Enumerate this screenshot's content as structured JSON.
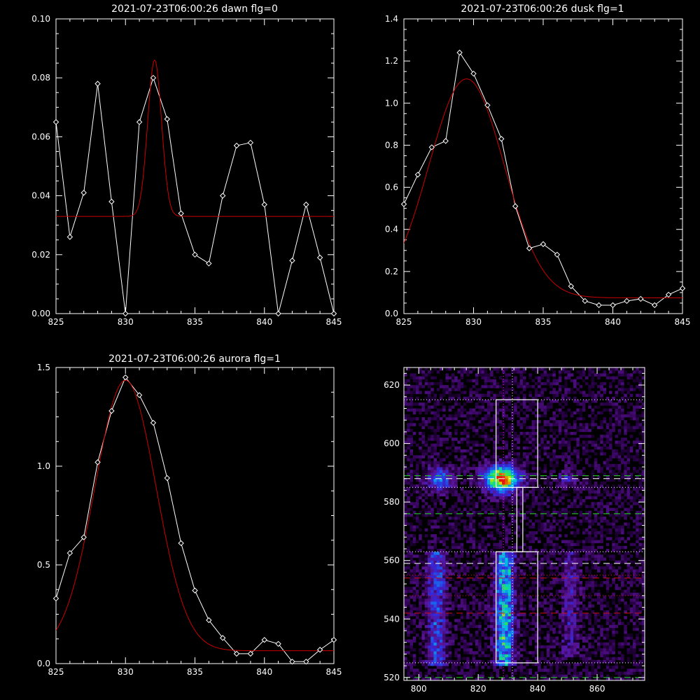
{
  "colors": {
    "background": "#000000",
    "data_line": "#ffffff",
    "fit_line": "#cc0000",
    "axes": "#ffffff",
    "green_dash": "#22dd22",
    "red_dash": "#cc1111",
    "box": "#ffffff"
  },
  "chart_data": [
    {
      "type": "line",
      "title": "2021-07-23T06:00:26 dawn flg=0",
      "xlim": [
        825,
        845
      ],
      "ylim": [
        0,
        0.1
      ],
      "xticks": [
        825,
        830,
        835,
        840,
        845
      ],
      "xtick_labels": [
        "825",
        "830",
        "835",
        "840",
        "845"
      ],
      "yticks": [
        0,
        0.02,
        0.04,
        0.06,
        0.08,
        0.1
      ],
      "ytick_labels": [
        "0.00",
        "0.02",
        "0.04",
        "0.06",
        "0.08",
        "0.10"
      ],
      "series": [
        {
          "role": "data",
          "marker": "diamond",
          "x": [
            825,
            826,
            827,
            828,
            829,
            830,
            831,
            832,
            833,
            834,
            835,
            836,
            837,
            838,
            839,
            840,
            841,
            842,
            843,
            844,
            845
          ],
          "y": [
            0.065,
            0.026,
            0.041,
            0.078,
            0.038,
            0.0,
            0.065,
            0.08,
            0.066,
            0.034,
            0.02,
            0.017,
            0.04,
            0.057,
            0.058,
            0.037,
            0.0,
            0.018,
            0.037,
            0.019,
            0.0
          ]
        },
        {
          "role": "fit",
          "model": "gaussian",
          "amplitude": 0.053,
          "center": 832.1,
          "sigma": 0.5,
          "baseline": 0.033
        }
      ]
    },
    {
      "type": "line",
      "title": "2021-07-23T06:00:26 dusk flg=1",
      "xlim": [
        825,
        845
      ],
      "ylim": [
        0,
        1.4
      ],
      "xticks": [
        825,
        830,
        835,
        840,
        845
      ],
      "xtick_labels": [
        "825",
        "830",
        "835",
        "840",
        "845"
      ],
      "yticks": [
        0,
        0.2,
        0.4,
        0.6,
        0.8,
        1.0,
        1.2,
        1.4
      ],
      "ytick_labels": [
        "0.0",
        "0.2",
        "0.4",
        "0.6",
        "0.8",
        "1.0",
        "1.2",
        "1.4"
      ],
      "series": [
        {
          "role": "data",
          "marker": "diamond",
          "x": [
            825,
            826,
            827,
            828,
            829,
            830,
            831,
            832,
            833,
            834,
            835,
            836,
            837,
            838,
            839,
            840,
            841,
            842,
            843,
            844,
            845
          ],
          "y": [
            0.52,
            0.66,
            0.79,
            0.82,
            1.24,
            1.14,
            0.99,
            0.83,
            0.51,
            0.31,
            0.33,
            0.28,
            0.13,
            0.06,
            0.04,
            0.04,
            0.06,
            0.07,
            0.04,
            0.09,
            0.12
          ]
        },
        {
          "role": "fit",
          "model": "gaussian",
          "amplitude": 1.04,
          "center": 829.5,
          "sigma": 2.7,
          "baseline": 0.075
        }
      ]
    },
    {
      "type": "line",
      "title": "2021-07-23T06:00:26 aurora flg=1",
      "xlim": [
        825,
        845
      ],
      "ylim": [
        0,
        1.5
      ],
      "xticks": [
        825,
        830,
        835,
        840,
        845
      ],
      "xtick_labels": [
        "825",
        "830",
        "835",
        "840",
        "845"
      ],
      "yticks": [
        0,
        0.5,
        1.0,
        1.5
      ],
      "ytick_labels": [
        "0.0",
        "0.5",
        "1.0",
        "1.5"
      ],
      "series": [
        {
          "role": "data",
          "marker": "diamond",
          "x": [
            825,
            826,
            827,
            828,
            829,
            830,
            831,
            832,
            833,
            834,
            835,
            836,
            837,
            838,
            839,
            840,
            841,
            842,
            843,
            844,
            845
          ],
          "y": [
            0.33,
            0.56,
            0.64,
            1.02,
            1.28,
            1.45,
            1.36,
            1.22,
            0.94,
            0.61,
            0.37,
            0.22,
            0.13,
            0.05,
            0.05,
            0.12,
            0.1,
            0.01,
            0.01,
            0.07,
            0.12
          ]
        },
        {
          "role": "fit",
          "model": "gaussian",
          "amplitude": 1.37,
          "center": 830.0,
          "sigma": 2.2,
          "baseline": 0.065
        }
      ]
    },
    {
      "type": "heatmap",
      "title": "",
      "xlim": [
        795,
        876
      ],
      "ylim": [
        519,
        626
      ],
      "xticks": [
        800,
        820,
        840,
        860
      ],
      "xtick_labels": [
        "800",
        "820",
        "840",
        "860"
      ],
      "yticks": [
        520,
        540,
        560,
        580,
        600,
        620
      ],
      "ytick_labels": [
        "520",
        "540",
        "560",
        "580",
        "600",
        "620"
      ],
      "colormap": "rainbow",
      "hotspots": [
        {
          "x": 828,
          "y": 588,
          "w": 4,
          "h": 3,
          "peak": 1.0
        },
        {
          "x": 807,
          "y": 588,
          "w": 3,
          "h": 2.5,
          "peak": 0.45
        },
        {
          "x": 850,
          "y": 588,
          "w": 2,
          "h": 2,
          "peak": 0.22
        }
      ],
      "bands": [
        {
          "x": 829,
          "w": 2.2,
          "y0": 524,
          "y1": 563,
          "peak": 0.55
        },
        {
          "x": 806,
          "w": 2.2,
          "y0": 524,
          "y1": 563,
          "peak": 0.32
        },
        {
          "x": 851,
          "w": 2.0,
          "y0": 527,
          "y1": 563,
          "peak": 0.16
        }
      ],
      "vertical_dotted_lines": [
        {
          "x": 828.5,
          "color": "#ff00ff"
        },
        {
          "x": 831.5,
          "color": "#ffffff"
        }
      ],
      "horizontal_lines": [
        {
          "y": 615,
          "style": "dotted",
          "color": "#ffffff"
        },
        {
          "y": 589,
          "style": "dashed",
          "color": "#22dd22"
        },
        {
          "y": 588,
          "style": "dashed",
          "color": "#ffffff"
        },
        {
          "y": 585,
          "style": "dotted",
          "color": "#ffffff"
        },
        {
          "y": 576,
          "style": "dashed",
          "color": "#22dd22"
        },
        {
          "y": 563,
          "style": "dotted",
          "color": "#ffffff"
        },
        {
          "y": 559,
          "style": "dashed",
          "color": "#ffffff"
        },
        {
          "y": 555,
          "style": "dotted",
          "color": "#cc1111"
        },
        {
          "y": 554,
          "style": "dashed",
          "color": "#cc1111"
        },
        {
          "y": 548,
          "style": "dotted",
          "color": "#cc1111"
        },
        {
          "y": 542,
          "style": "dashed",
          "color": "#cc1111"
        },
        {
          "y": 525,
          "style": "dotted",
          "color": "#ffffff"
        },
        {
          "y": 520,
          "style": "dashed",
          "color": "#22dd22"
        }
      ],
      "boxes": [
        {
          "x0": 826,
          "x1": 840,
          "y0": 585,
          "y1": 615
        },
        {
          "x0": 833,
          "x1": 835,
          "y0": 563,
          "y1": 585
        },
        {
          "x0": 826,
          "x1": 840,
          "y0": 525,
          "y1": 563
        }
      ]
    }
  ]
}
